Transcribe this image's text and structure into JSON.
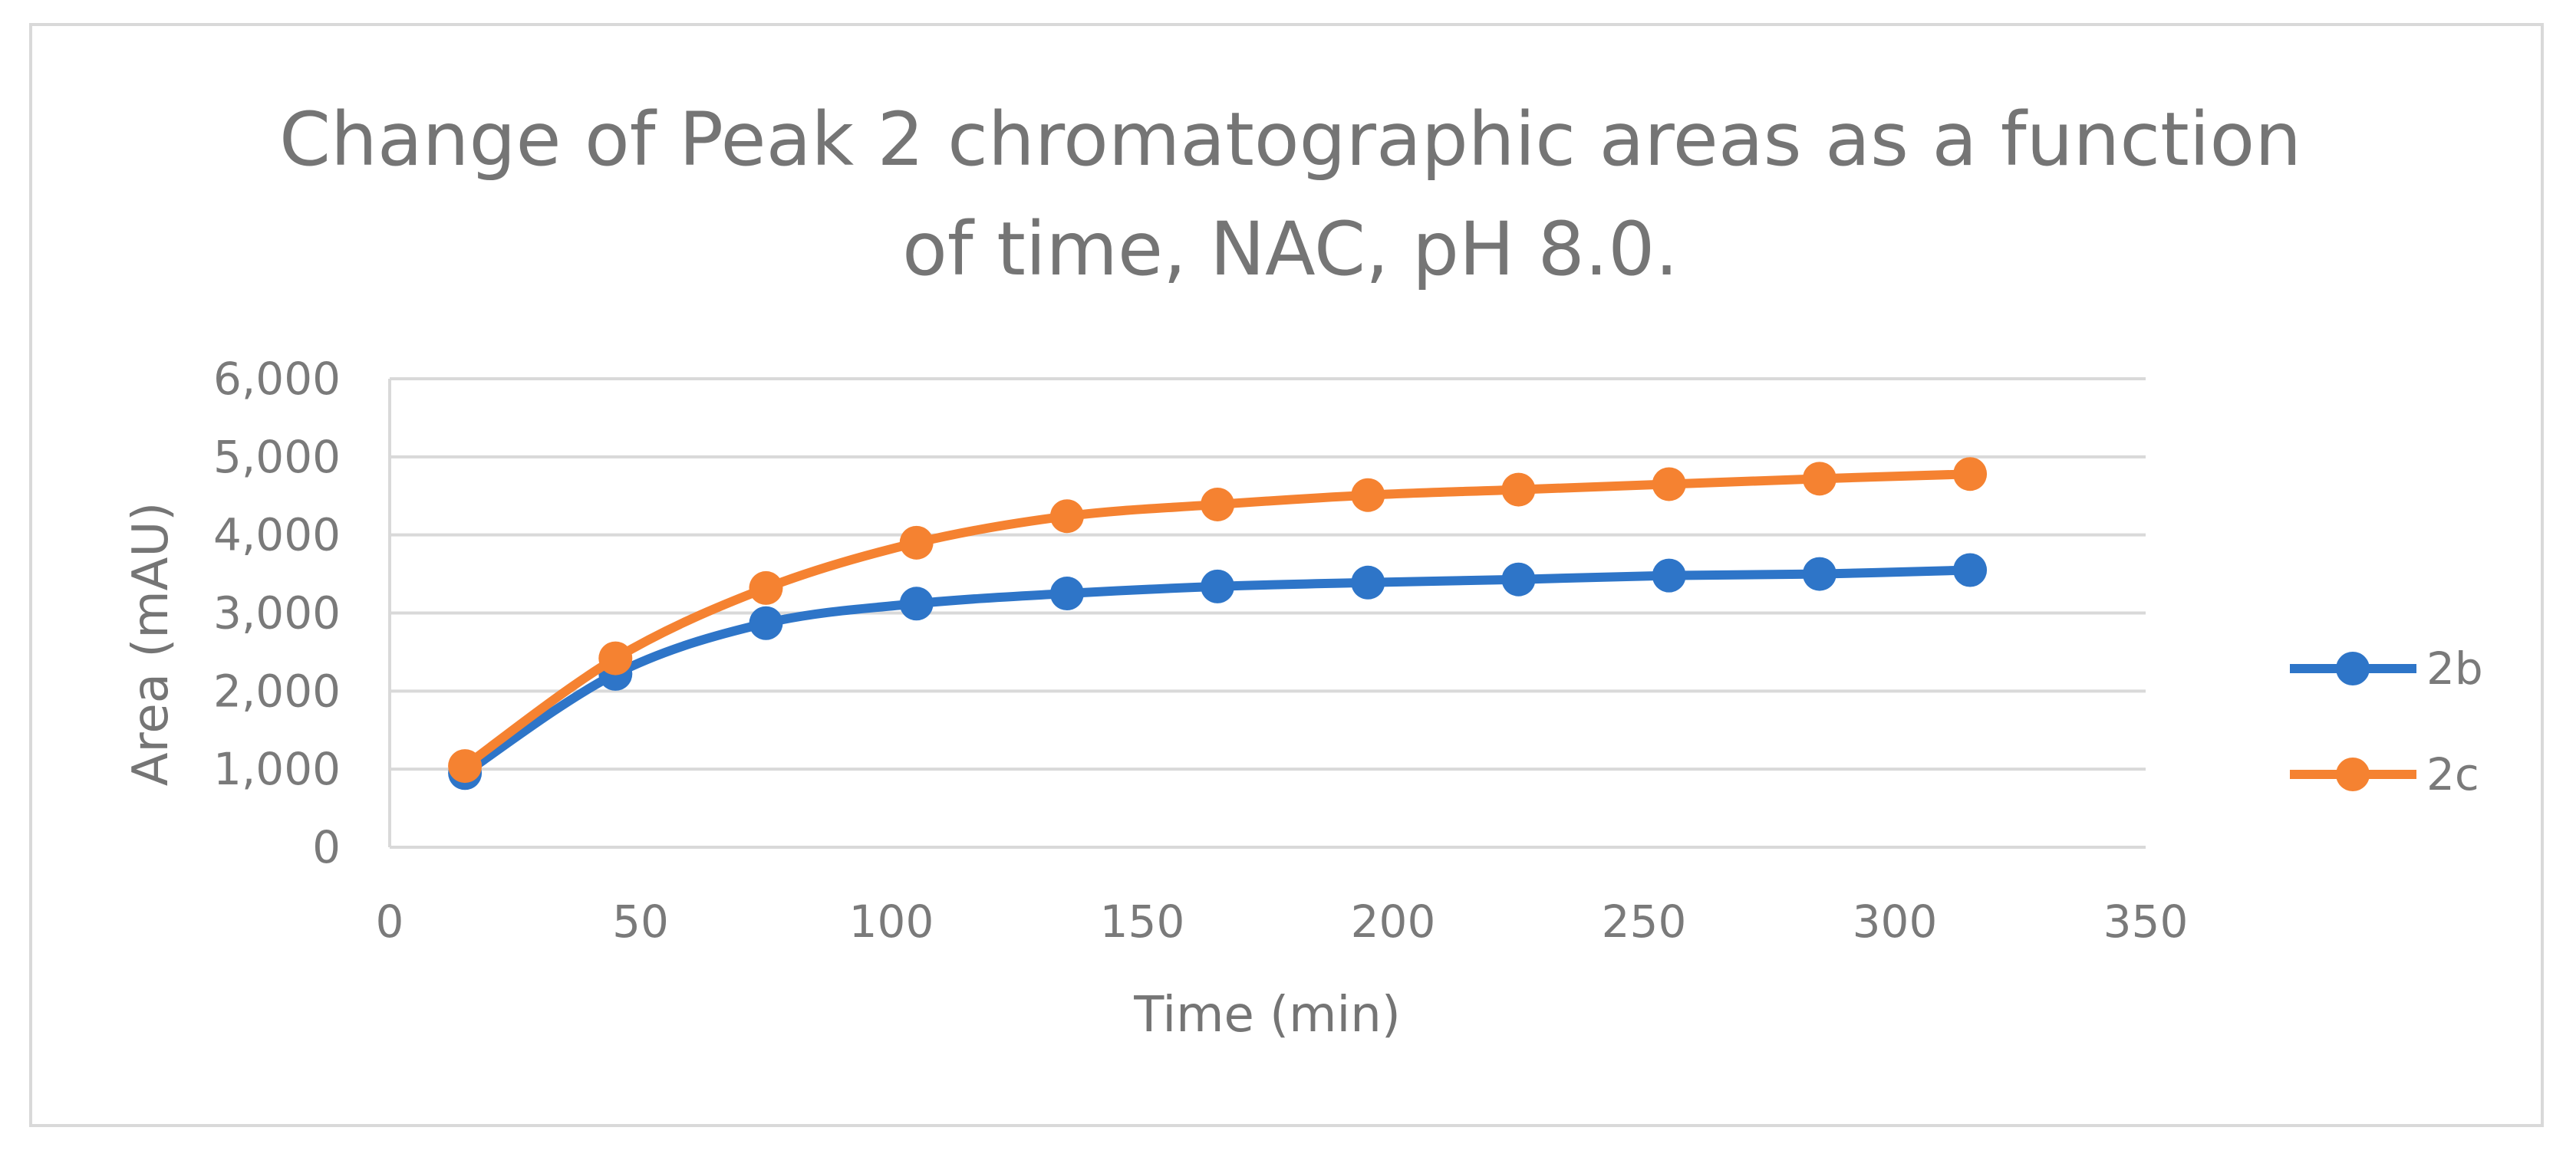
{
  "chart_data": {
    "type": "line",
    "title_lines": [
      "Change of Peak 2 chromatographic areas as a function",
      "of time, NAC, pH 8.0."
    ],
    "xlabel": "Time (min)",
    "ylabel": "Area (mAU)",
    "xlim": [
      0,
      350
    ],
    "ylim": [
      0,
      6000
    ],
    "x_ticks": [
      "0",
      "50",
      "100",
      "150",
      "200",
      "250",
      "300",
      "350"
    ],
    "y_ticks": [
      "0",
      "1,000",
      "2,000",
      "3,000",
      "4,000",
      "5,000",
      "6,000"
    ],
    "grid": "horizontal",
    "legend_position": "right",
    "x": [
      15,
      45,
      75,
      105,
      135,
      165,
      195,
      225,
      255,
      285,
      315
    ],
    "series": [
      {
        "name": "2b",
        "color": "#2e75c8",
        "values": [
          950,
          2220,
          2870,
          3120,
          3250,
          3340,
          3390,
          3430,
          3480,
          3500,
          3550
        ]
      },
      {
        "name": "2c",
        "color": "#f58231",
        "values": [
          1040,
          2420,
          3320,
          3900,
          4240,
          4390,
          4510,
          4580,
          4650,
          4720,
          4780
        ]
      }
    ]
  }
}
